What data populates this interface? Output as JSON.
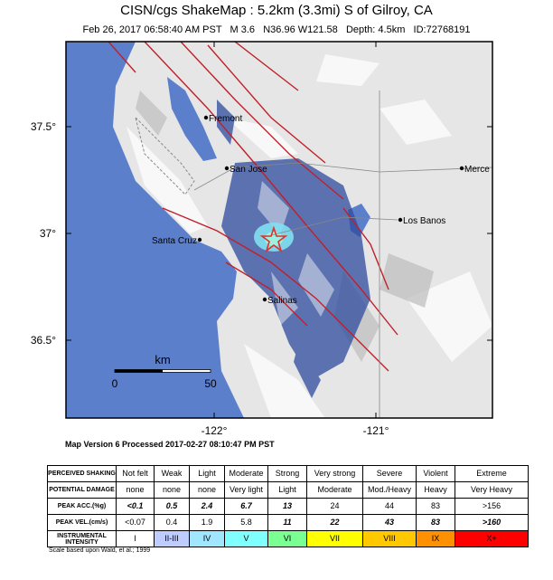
{
  "header": {
    "title": "CISN/cgs ShakeMap : 5.2km (3.3mi) S of Gilroy, CA",
    "subtitle": "Feb 26, 2017 06:58:40 AM PST   M 3.6   N36.96 W121.58   Depth: 4.5km   ID:72768191"
  },
  "map": {
    "lat_labels": [
      "37.5°",
      "37°",
      "36.5°"
    ],
    "lon_labels": [
      "-122°",
      "-121°"
    ],
    "cities": [
      "Fremont",
      "San Jose",
      "Merce",
      "Los Banos",
      "Santa Cruz",
      "Salinas"
    ],
    "scale": {
      "unit": "km",
      "labels": [
        "0",
        "50"
      ]
    }
  },
  "footer": "Map Version 6 Processed 2017-02-27 08:10:47 PM PST",
  "legend": {
    "row_labels": [
      "PERCEIVED SHAKING",
      "POTENTIAL DAMAGE",
      "PEAK ACC.(%g)",
      "PEAK VEL.(cm/s)",
      "INSTRUMENTAL INTENSITY"
    ],
    "rows": [
      [
        "Not felt",
        "Weak",
        "Light",
        "Moderate",
        "Strong",
        "Very strong",
        "Severe",
        "Violent",
        "Extreme"
      ],
      [
        "none",
        "none",
        "none",
        "Very light",
        "Light",
        "Moderate",
        "Mod./Heavy",
        "Heavy",
        "Very Heavy"
      ],
      [
        "<0.1",
        "0.5",
        "2.4",
        "6.7",
        "13",
        "24",
        "44",
        "83",
        ">156"
      ],
      [
        "<0.07",
        "0.4",
        "1.9",
        "5.8",
        "11",
        "22",
        "43",
        "83",
        ">160"
      ],
      [
        "I",
        "II-III",
        "IV",
        "V",
        "VI",
        "VII",
        "VIII",
        "IX",
        "X+"
      ]
    ]
  },
  "note": "Scale based upon Wald, et al.; 1999"
}
